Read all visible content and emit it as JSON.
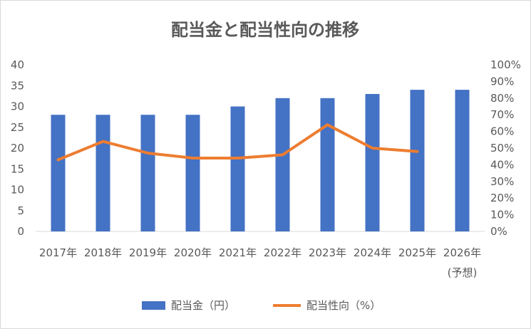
{
  "chart_data": {
    "type": "bar",
    "title": "配当金と配当性向の推移",
    "categories": [
      "2017年",
      "2018年",
      "2019年",
      "2020年",
      "2021年",
      "2022年",
      "2023年",
      "2024年",
      "2025年",
      "2026年"
    ],
    "category_sublabels": [
      "",
      "",
      "",
      "",
      "",
      "",
      "",
      "",
      "",
      "(予想)"
    ],
    "series": [
      {
        "name": "配当金（円）",
        "type": "bar",
        "axis": "left",
        "color": "#4472c4",
        "values": [
          28,
          28,
          28,
          28,
          30,
          32,
          32,
          33,
          34,
          34
        ]
      },
      {
        "name": "配当性向（%）",
        "type": "line",
        "axis": "right",
        "color": "#ed7d31",
        "values": [
          43,
          54,
          47,
          44,
          44,
          46,
          64,
          50,
          48,
          null
        ]
      }
    ],
    "y_left": {
      "min": 0,
      "max": 40,
      "step": 5,
      "tick_labels": [
        "0",
        "5",
        "10",
        "15",
        "20",
        "25",
        "30",
        "35",
        "40"
      ]
    },
    "y_right": {
      "min": 0,
      "max": 100,
      "step": 10,
      "tick_labels": [
        "0%",
        "10%",
        "20%",
        "30%",
        "40%",
        "50%",
        "60%",
        "70%",
        "80%",
        "90%",
        "100%"
      ]
    },
    "grid": false,
    "legend_position": "bottom"
  }
}
